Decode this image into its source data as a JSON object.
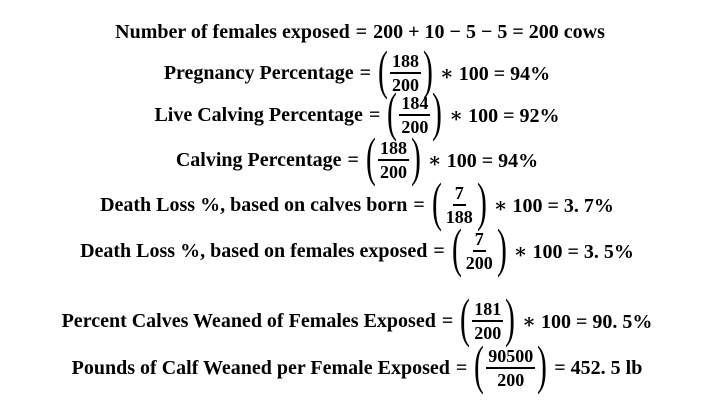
{
  "equations": [
    {
      "label": "Number of females exposed",
      "expr": "200 + 10 − 5 − 5 = 200 cows"
    },
    {
      "label": "Pregnancy Percentage",
      "num": "188",
      "den": "200",
      "result": "∗ 100 = 94%"
    },
    {
      "label": "Live Calving Percentage",
      "num": "184",
      "den": "200",
      "result": "∗ 100 = 92%"
    },
    {
      "label": "Calving Percentage",
      "num": "188",
      "den": "200",
      "result": "∗ 100 = 94%"
    },
    {
      "label": "Death Loss %, based on calves born",
      "num": "7",
      "den": "188",
      "result": "∗ 100 = 3. 7%"
    },
    {
      "label": "Death Loss %, based on females exposed",
      "num": "7",
      "den": "200",
      "result": "∗ 100 = 3. 5%"
    },
    {
      "label": "Percent Calves Weaned of Females Exposed",
      "num": "181",
      "den": "200",
      "result": "∗ 100 = 90. 5%"
    },
    {
      "label": "Pounds of Calf Weaned per Female Exposed",
      "num": "90500",
      "den": "200",
      "result": "= 452. 5 lb"
    }
  ],
  "symbols": {
    "equals": "=",
    "lparen": "(",
    "rparen": ")"
  }
}
